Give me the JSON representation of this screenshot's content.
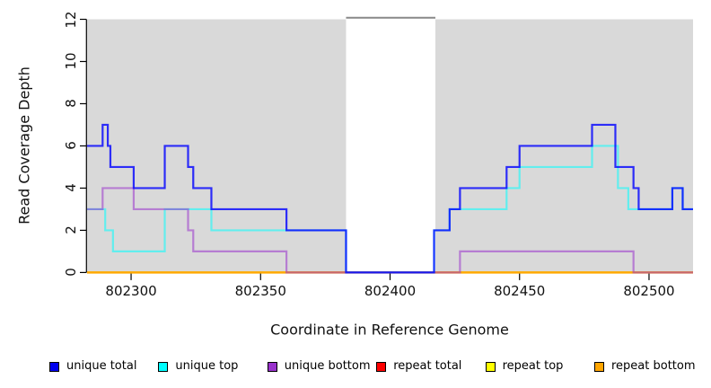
{
  "figure": {
    "x_axis_title": "Coordinate in Reference Genome",
    "y_axis_title": "Read Coverage Depth"
  },
  "legend": {
    "items": [
      {
        "label": "unique total",
        "color": "#0000ee"
      },
      {
        "label": "unique top",
        "color": "#00ffff"
      },
      {
        "label": "unique bottom",
        "color": "#9932cc"
      },
      {
        "label": "repeat total",
        "color": "#ff0000"
      },
      {
        "label": "repeat top",
        "color": "#ffff00"
      },
      {
        "label": "repeat bottom",
        "color": "#ffa500"
      }
    ]
  },
  "chart_data": {
    "type": "line",
    "subtype": "step",
    "title": "",
    "xlabel": "Coordinate in Reference Genome",
    "ylabel": "Read Coverage Depth",
    "xlim": [
      802283,
      802517
    ],
    "ylim": [
      0,
      12
    ],
    "x_ticks": [
      802300,
      802350,
      802400,
      802450,
      802500
    ],
    "y_ticks": [
      0,
      2,
      4,
      6,
      8,
      10,
      12
    ],
    "grid": false,
    "legend_position": "bottom",
    "plot_bg": "#d9d9d9",
    "gap_region": {
      "from": 802383,
      "to": 802417.5,
      "fill": "#ffffff",
      "top_line": "#888888"
    },
    "series": [
      {
        "name": "repeat total",
        "color": "#ff0000",
        "opacity": 0.55,
        "width": 2.2,
        "steps": [
          [
            802283,
            0
          ],
          [
            802517,
            0
          ]
        ]
      },
      {
        "name": "repeat top",
        "color": "#ffff00",
        "opacity": 0.9,
        "width": 2.2,
        "steps": [
          [
            802283,
            0
          ],
          [
            802517,
            0
          ]
        ]
      },
      {
        "name": "repeat bottom",
        "color": "#ffa500",
        "opacity": 0.95,
        "width": 2.4,
        "steps": [
          [
            802283,
            0
          ],
          [
            802517,
            0
          ]
        ]
      },
      {
        "name": "unique top",
        "color": "#00ffff",
        "opacity": 0.55,
        "width": 2.2,
        "steps": [
          [
            802283,
            3
          ],
          [
            802290,
            2
          ],
          [
            802293,
            1
          ],
          [
            802313,
            3
          ],
          [
            802331,
            2
          ],
          [
            802383,
            0
          ],
          [
            802417,
            2
          ],
          [
            802423,
            3
          ],
          [
            802445,
            4
          ],
          [
            802450,
            5
          ],
          [
            802478,
            6
          ],
          [
            802488,
            4
          ],
          [
            802492,
            3
          ],
          [
            802509,
            4
          ],
          [
            802513,
            3
          ],
          [
            802517,
            3
          ]
        ]
      },
      {
        "name": "unique bottom",
        "color": "#9932cc",
        "opacity": 0.55,
        "width": 2.2,
        "steps": [
          [
            802283,
            3
          ],
          [
            802289,
            4
          ],
          [
            802301,
            3
          ],
          [
            802322,
            2
          ],
          [
            802324,
            1
          ],
          [
            802360,
            0
          ],
          [
            802427,
            1
          ],
          [
            802494,
            0
          ],
          [
            802517,
            0
          ]
        ]
      },
      {
        "name": "unique total",
        "color": "#0000ff",
        "opacity": 0.8,
        "width": 2.2,
        "steps": [
          [
            802283,
            6
          ],
          [
            802289,
            7
          ],
          [
            802291,
            6
          ],
          [
            802292,
            5
          ],
          [
            802301,
            4
          ],
          [
            802313,
            6
          ],
          [
            802322,
            5
          ],
          [
            802324,
            4
          ],
          [
            802331,
            3
          ],
          [
            802360,
            2
          ],
          [
            802383,
            0
          ],
          [
            802417,
            2
          ],
          [
            802423,
            3
          ],
          [
            802427,
            4
          ],
          [
            802445,
            5
          ],
          [
            802450,
            6
          ],
          [
            802478,
            7
          ],
          [
            802487,
            5
          ],
          [
            802494,
            4
          ],
          [
            802496,
            3
          ],
          [
            802509,
            4
          ],
          [
            802513,
            3
          ],
          [
            802517,
            3
          ]
        ]
      }
    ]
  }
}
